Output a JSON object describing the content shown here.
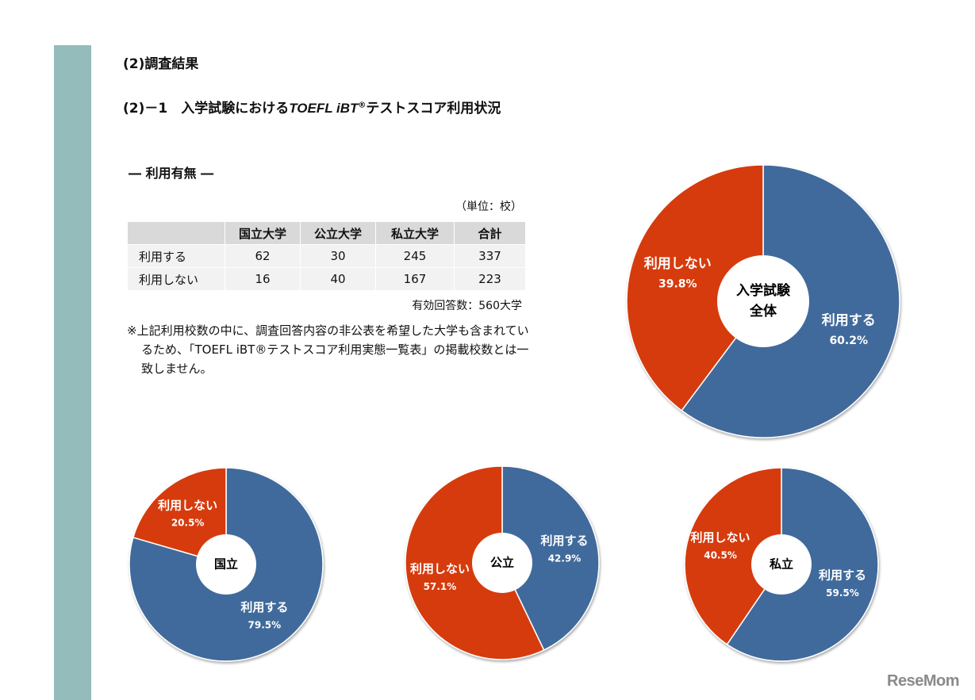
{
  "header": {
    "title": "(2)調査結果",
    "subtitle_prefix": "(2)－1　入学試験における",
    "subtitle_italic": "TOEFL iBT",
    "subtitle_mark": "®",
    "subtitle_suffix": "テストスコア利用状況"
  },
  "section": "― 利用有無 ―",
  "unit": "（単位：校）",
  "table": {
    "header": [
      "国立大学",
      "公立大学",
      "私立大学",
      "合計"
    ],
    "rows": [
      [
        "利用する",
        62,
        30,
        245,
        337
      ],
      [
        "利用しない",
        16,
        40,
        167,
        223
      ]
    ]
  },
  "responses": "有効回答数：560大学",
  "note": "※上記利用校数の中に、調査回答内容の非公表を希望した大学も含まれているため、「TOEFL iBT®テストスコア利用実態一覧表」の掲載校数とは一致しません。",
  "logo": "ReseMom",
  "chart_data": [
    {
      "type": "donut",
      "center_label": [
        "入学試験",
        "全体"
      ],
      "categories": [
        "利用する",
        "利用しない"
      ],
      "values": [
        60.2,
        39.8
      ],
      "value_labels": [
        "60.2%",
        "39.8%"
      ],
      "colors": [
        "#416a9c",
        "#d63b0f"
      ]
    },
    {
      "type": "donut",
      "center_label": [
        "国立"
      ],
      "categories": [
        "利用する",
        "利用しない"
      ],
      "values": [
        79.5,
        20.5
      ],
      "value_labels": [
        "79.5%",
        "20.5%"
      ],
      "colors": [
        "#416a9c",
        "#d63b0f"
      ]
    },
    {
      "type": "donut",
      "center_label": [
        "公立"
      ],
      "categories": [
        "利用する",
        "利用しない"
      ],
      "values": [
        42.9,
        57.1
      ],
      "value_labels": [
        "42.9%",
        "57.1%"
      ],
      "colors": [
        "#416a9c",
        "#d63b0f"
      ]
    },
    {
      "type": "donut",
      "center_label": [
        "私立"
      ],
      "categories": [
        "利用する",
        "利用しない"
      ],
      "values": [
        59.5,
        40.5
      ],
      "value_labels": [
        "59.5%",
        "40.5%"
      ],
      "colors": [
        "#416a9c",
        "#d63b0f"
      ]
    }
  ]
}
